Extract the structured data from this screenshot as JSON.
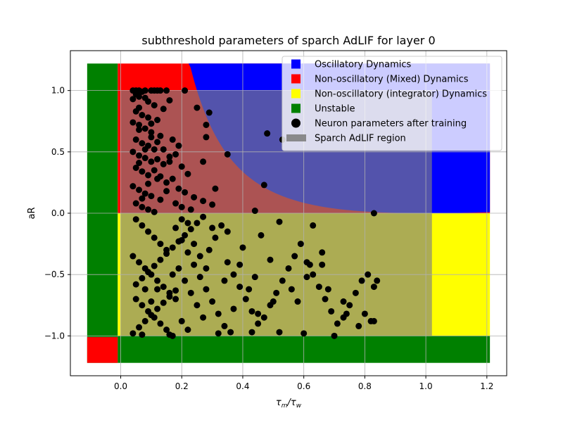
{
  "chart_data": {
    "type": "scatter",
    "title": "subthreshold parameters of sparch AdLIF for layer 0",
    "xlabel_main": "τ",
    "xlabel_sub1": "m",
    "xlabel_slash": "/τ",
    "xlabel_sub2": "w",
    "ylabel": "aR",
    "xlim": [
      -0.165,
      1.265
    ],
    "ylim": [
      -1.325,
      1.325
    ],
    "xticks": [
      0.0,
      0.2,
      0.4,
      0.6,
      0.8,
      1.0,
      1.2
    ],
    "xtick_labels": [
      "0.0",
      "0.2",
      "0.4",
      "0.6",
      "0.8",
      "1.0",
      "1.2"
    ],
    "yticks": [
      -1.0,
      -0.5,
      0.0,
      0.5,
      1.0
    ],
    "ytick_labels": [
      "−1.0",
      "−0.5",
      "0.0",
      "0.5",
      "1.0"
    ],
    "grid": true,
    "legend_position": "upper right",
    "colors": {
      "oscillatory": "#0000ff",
      "mixed": "#ff0000",
      "integrator": "#ffff00",
      "unstable": "#008000",
      "points": "#000000",
      "sparch_region": "#808080"
    },
    "legend": [
      {
        "label": "Oscillatory Dynamics",
        "marker": "square",
        "color": "#0000ff"
      },
      {
        "label": "Non-oscillatory (Mixed) Dynamics",
        "marker": "square",
        "color": "#ff0000"
      },
      {
        "label": "Non-oscillatory (integrator) Dynamics",
        "marker": "square",
        "color": "#ffff00"
      },
      {
        "label": "Unstable",
        "marker": "square",
        "color": "#008000"
      },
      {
        "label": "Neuron parameters after training",
        "marker": "circle",
        "color": "#000000"
      },
      {
        "label": "Sparch AdLIF region",
        "marker": "patch",
        "color": "#808080"
      }
    ],
    "regions": {
      "background_x": [
        -0.11,
        1.21
      ],
      "background_y": [
        -1.22,
        1.22
      ],
      "unstable_x_max": -0.01,
      "oscillatory_boundary": "aR > (1 - sqrt(x))^2 / x, x > 0, aR > 0",
      "sparch_region_x": [
        0.0,
        1.02
      ],
      "sparch_region_y": [
        -1.0,
        1.0
      ],
      "sparch_region_alpha": 0.65
    },
    "series": [
      {
        "name": "Neuron parameters after training",
        "points": [
          [
            0.04,
            1.0
          ],
          [
            0.05,
            1.0
          ],
          [
            0.06,
            1.0
          ],
          [
            0.07,
            0.99
          ],
          [
            0.08,
            1.0
          ],
          [
            0.1,
            1.0
          ],
          [
            0.11,
            1.0
          ],
          [
            0.12,
            1.0
          ],
          [
            0.13,
            1.0
          ],
          [
            0.15,
            1.0
          ],
          [
            0.21,
            1.0
          ],
          [
            0.05,
            0.97
          ],
          [
            0.06,
            0.95
          ],
          [
            0.08,
            0.94
          ],
          [
            0.04,
            0.93
          ],
          [
            0.09,
            0.91
          ],
          [
            0.11,
            0.88
          ],
          [
            0.16,
            0.92
          ],
          [
            0.06,
            0.86
          ],
          [
            0.14,
            0.85
          ],
          [
            0.05,
            0.83
          ],
          [
            0.07,
            0.8
          ],
          [
            0.09,
            0.78
          ],
          [
            0.12,
            0.76
          ],
          [
            0.04,
            0.74
          ],
          [
            0.06,
            0.72
          ],
          [
            0.08,
            0.69
          ],
          [
            0.1,
            0.66
          ],
          [
            0.13,
            0.63
          ],
          [
            0.05,
            0.6
          ],
          [
            0.07,
            0.57
          ],
          [
            0.09,
            0.55
          ],
          [
            0.11,
            0.52
          ],
          [
            0.04,
            0.5
          ],
          [
            0.06,
            0.47
          ],
          [
            0.08,
            0.45
          ],
          [
            0.1,
            0.42
          ],
          [
            0.14,
            0.4
          ],
          [
            0.05,
            0.37
          ],
          [
            0.07,
            0.34
          ],
          [
            0.09,
            0.31
          ],
          [
            0.12,
            0.28
          ],
          [
            0.15,
            0.25
          ],
          [
            0.04,
            0.22
          ],
          [
            0.06,
            0.19
          ],
          [
            0.08,
            0.16
          ],
          [
            0.1,
            0.14
          ],
          [
            0.13,
            0.11
          ],
          [
            0.05,
            0.08
          ],
          [
            0.07,
            0.05
          ],
          [
            0.09,
            0.03
          ],
          [
            0.11,
            0.01
          ],
          [
            0.17,
            0.6
          ],
          [
            0.19,
            0.55
          ],
          [
            0.18,
            0.48
          ],
          [
            0.16,
            0.42
          ],
          [
            0.2,
            0.38
          ],
          [
            0.22,
            0.32
          ],
          [
            0.17,
            0.28
          ],
          [
            0.19,
            0.2
          ],
          [
            0.21,
            0.17
          ],
          [
            0.24,
            0.13
          ],
          [
            0.27,
            0.1
          ],
          [
            0.18,
            0.08
          ],
          [
            0.2,
            0.05
          ],
          [
            0.23,
            0.03
          ],
          [
            0.06,
            0.68
          ],
          [
            0.1,
            0.73
          ],
          [
            0.12,
            0.58
          ],
          [
            0.14,
            0.52
          ],
          [
            0.16,
            0.46
          ],
          [
            0.11,
            0.35
          ],
          [
            0.13,
            0.3
          ],
          [
            0.15,
            0.18
          ],
          [
            0.07,
            0.12
          ],
          [
            0.09,
            0.24
          ],
          [
            0.12,
            0.44
          ],
          [
            0.08,
            0.52
          ],
          [
            0.06,
            0.41
          ],
          [
            0.1,
            0.62
          ],
          [
            0.25,
            0.86
          ],
          [
            0.29,
            0.82
          ],
          [
            0.28,
            0.72
          ],
          [
            0.28,
            0.62
          ],
          [
            0.27,
            0.42
          ],
          [
            0.35,
            0.48
          ],
          [
            0.48,
            0.65
          ],
          [
            0.53,
            0.6
          ],
          [
            0.47,
            0.23
          ],
          [
            0.31,
            0.2
          ],
          [
            0.3,
            0.07
          ],
          [
            0.44,
            0.02
          ],
          [
            0.83,
            0.0
          ],
          [
            0.05,
            -0.05
          ],
          [
            0.07,
            -0.1
          ],
          [
            0.09,
            -0.15
          ],
          [
            0.11,
            -0.2
          ],
          [
            0.13,
            -0.25
          ],
          [
            0.15,
            -0.3
          ],
          [
            0.04,
            -0.35
          ],
          [
            0.06,
            -0.4
          ],
          [
            0.08,
            -0.45
          ],
          [
            0.1,
            -0.5
          ],
          [
            0.12,
            -0.55
          ],
          [
            0.14,
            -0.6
          ],
          [
            0.16,
            -0.65
          ],
          [
            0.05,
            -0.7
          ],
          [
            0.07,
            -0.75
          ],
          [
            0.09,
            -0.8
          ],
          [
            0.11,
            -0.85
          ],
          [
            0.13,
            -0.9
          ],
          [
            0.15,
            -0.95
          ],
          [
            0.17,
            -1.0
          ],
          [
            0.04,
            -0.98
          ],
          [
            0.06,
            -0.93
          ],
          [
            0.08,
            -0.88
          ],
          [
            0.1,
            -0.83
          ],
          [
            0.12,
            -0.78
          ],
          [
            0.14,
            -0.73
          ],
          [
            0.16,
            -0.68
          ],
          [
            0.18,
            -0.63
          ],
          [
            0.05,
            -0.58
          ],
          [
            0.07,
            -0.53
          ],
          [
            0.09,
            -0.48
          ],
          [
            0.11,
            -0.43
          ],
          [
            0.13,
            -0.38
          ],
          [
            0.15,
            -0.33
          ],
          [
            0.17,
            -0.28
          ],
          [
            0.19,
            -0.23
          ],
          [
            0.21,
            -0.18
          ],
          [
            0.23,
            -0.13
          ],
          [
            0.25,
            -0.08
          ],
          [
            0.27,
            -0.03
          ],
          [
            0.18,
            -0.12
          ],
          [
            0.2,
            -0.22
          ],
          [
            0.22,
            -0.32
          ],
          [
            0.24,
            -0.42
          ],
          [
            0.26,
            -0.52
          ],
          [
            0.28,
            -0.62
          ],
          [
            0.3,
            -0.72
          ],
          [
            0.32,
            -0.82
          ],
          [
            0.34,
            -0.92
          ],
          [
            0.36,
            -0.97
          ],
          [
            0.19,
            -0.45
          ],
          [
            0.21,
            -0.55
          ],
          [
            0.23,
            -0.65
          ],
          [
            0.25,
            -0.75
          ],
          [
            0.27,
            -0.85
          ],
          [
            0.29,
            -0.3
          ],
          [
            0.31,
            -0.2
          ],
          [
            0.33,
            -0.1
          ],
          [
            0.35,
            -0.4
          ],
          [
            0.37,
            -0.5
          ],
          [
            0.39,
            -0.6
          ],
          [
            0.41,
            -0.7
          ],
          [
            0.43,
            -0.8
          ],
          [
            0.45,
            -0.9
          ],
          [
            0.47,
            -0.85
          ],
          [
            0.49,
            -0.75
          ],
          [
            0.51,
            -0.65
          ],
          [
            0.53,
            -0.55
          ],
          [
            0.55,
            -0.45
          ],
          [
            0.57,
            -0.35
          ],
          [
            0.59,
            -0.25
          ],
          [
            0.61,
            -0.4
          ],
          [
            0.63,
            -0.5
          ],
          [
            0.65,
            -0.6
          ],
          [
            0.67,
            -0.7
          ],
          [
            0.69,
            -0.8
          ],
          [
            0.71,
            -0.9
          ],
          [
            0.73,
            -0.85
          ],
          [
            0.75,
            -0.75
          ],
          [
            0.77,
            -0.65
          ],
          [
            0.79,
            -0.55
          ],
          [
            0.81,
            -0.5
          ],
          [
            0.83,
            -0.6
          ],
          [
            0.84,
            -0.55
          ],
          [
            0.82,
            -0.88
          ],
          [
            0.78,
            -0.92
          ],
          [
            0.74,
            -0.82
          ],
          [
            0.7,
            -1.0
          ],
          [
            0.6,
            -0.98
          ],
          [
            0.52,
            -0.97
          ],
          [
            0.43,
            -0.97
          ],
          [
            0.32,
            -0.98
          ],
          [
            0.16,
            -0.99
          ],
          [
            0.07,
            -0.99
          ],
          [
            0.45,
            -0.82
          ],
          [
            0.5,
            -0.72
          ],
          [
            0.56,
            -0.62
          ],
          [
            0.62,
            -0.42
          ],
          [
            0.66,
            -0.32
          ],
          [
            0.52,
            -0.07
          ],
          [
            0.63,
            -0.1
          ],
          [
            0.46,
            -0.18
          ],
          [
            0.4,
            -0.28
          ],
          [
            0.35,
            -0.15
          ],
          [
            0.3,
            -0.12
          ],
          [
            0.39,
            -0.42
          ],
          [
            0.44,
            -0.52
          ],
          [
            0.58,
            -0.72
          ],
          [
            0.68,
            -0.62
          ],
          [
            0.73,
            -0.72
          ],
          [
            0.8,
            -0.82
          ],
          [
            0.83,
            -0.88
          ],
          [
            0.66,
            -0.42
          ],
          [
            0.61,
            -0.52
          ],
          [
            0.49,
            -0.38
          ],
          [
            0.42,
            -0.62
          ],
          [
            0.37,
            -0.78
          ],
          [
            0.34,
            -0.55
          ],
          [
            0.28,
            -0.45
          ],
          [
            0.26,
            -0.35
          ],
          [
            0.24,
            -0.25
          ],
          [
            0.2,
            -0.05
          ],
          [
            0.22,
            -0.08
          ],
          [
            0.17,
            -0.5
          ],
          [
            0.18,
            -0.7
          ],
          [
            0.2,
            -0.88
          ],
          [
            0.22,
            -0.95
          ],
          [
            0.12,
            -0.62
          ],
          [
            0.1,
            -0.72
          ],
          [
            0.08,
            -0.62
          ]
        ]
      }
    ]
  }
}
